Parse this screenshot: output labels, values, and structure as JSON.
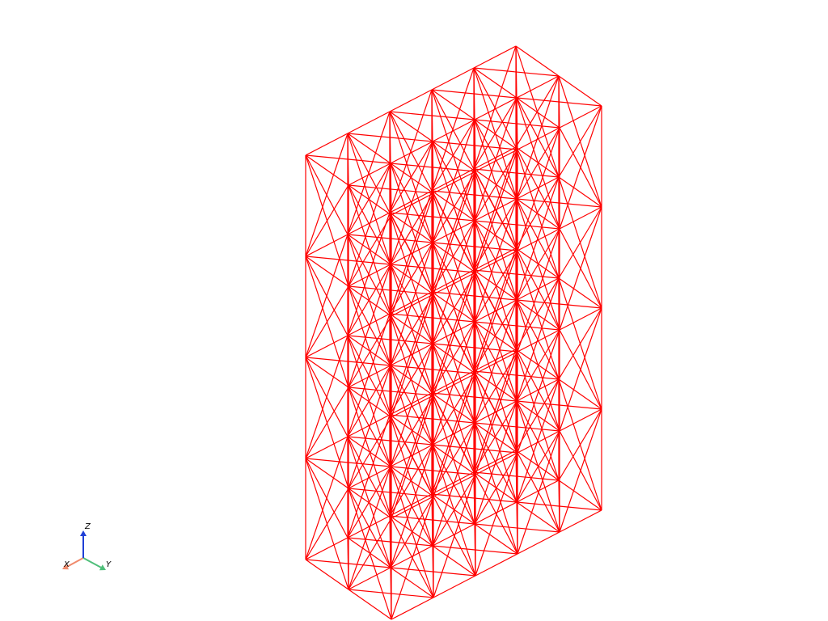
{
  "viewer": {
    "background": "#ffffff",
    "mesh": {
      "style": "wireframe",
      "color": "#ff0000",
      "grid": {
        "nx": 2,
        "ny": 5,
        "nz": 4
      }
    }
  },
  "orientation_widget": {
    "axes": [
      {
        "key": "x",
        "label": "X",
        "color": "#f08a6c"
      },
      {
        "key": "y",
        "label": "Y",
        "color": "#4fbf7a"
      },
      {
        "key": "z",
        "label": "Z",
        "color": "#1f3fd6"
      }
    ]
  }
}
